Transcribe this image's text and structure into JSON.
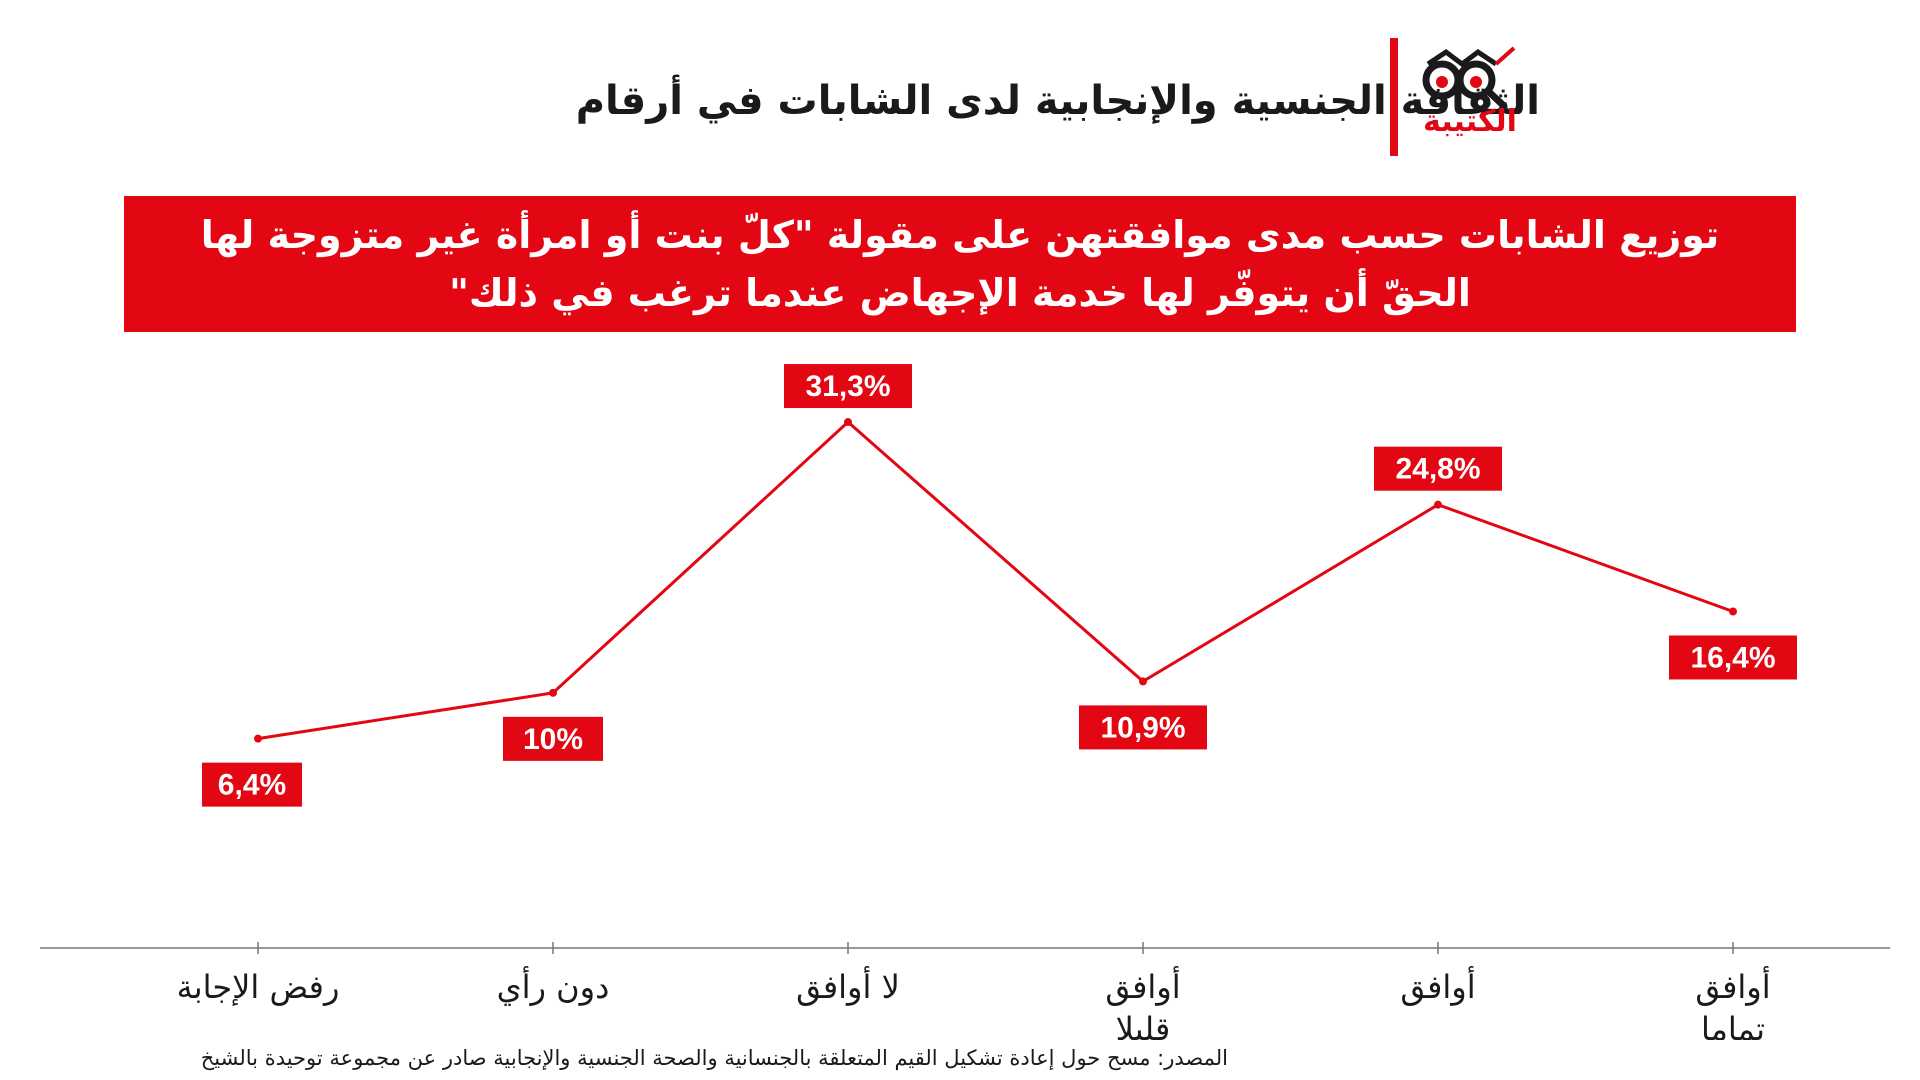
{
  "header": {
    "title": "الثقافة الجنسية والإنجابية لدى الشابات في أرقام",
    "logo_text": "الكتيبة"
  },
  "chart_data": {
    "type": "line",
    "title_lines": [
      "توزيع الشابات حسب مدى موافقتهن على مقولة \"كلّ بنت أو امرأة غير متزوجة لها",
      "الحقّ أن يتوفّر لها خدمة الإجهاض عندما ترغب في ذلك\""
    ],
    "categories": [
      [
        "رفض الإجابة"
      ],
      [
        "دون رأي"
      ],
      [
        "لا أوافق"
      ],
      [
        "أوافق",
        "قليلا"
      ],
      [
        "أوافق"
      ],
      [
        "أوافق",
        "تماما"
      ]
    ],
    "values": [
      6.4,
      10,
      31.3,
      10.9,
      24.8,
      16.4
    ],
    "value_labels": [
      "6,4%",
      "10%",
      "31,3%",
      "10,9%",
      "24,8%",
      "16,4%"
    ],
    "ylim": [
      0,
      35
    ],
    "grid": false,
    "color": "#e30613"
  },
  "source": "المصدر: مسح حول إعادة تشكيل القيم المتعلقة بالجنسانية والصحة الجنسية والإنجابية صادر عن مجموعة توحيدة بالشيخ"
}
